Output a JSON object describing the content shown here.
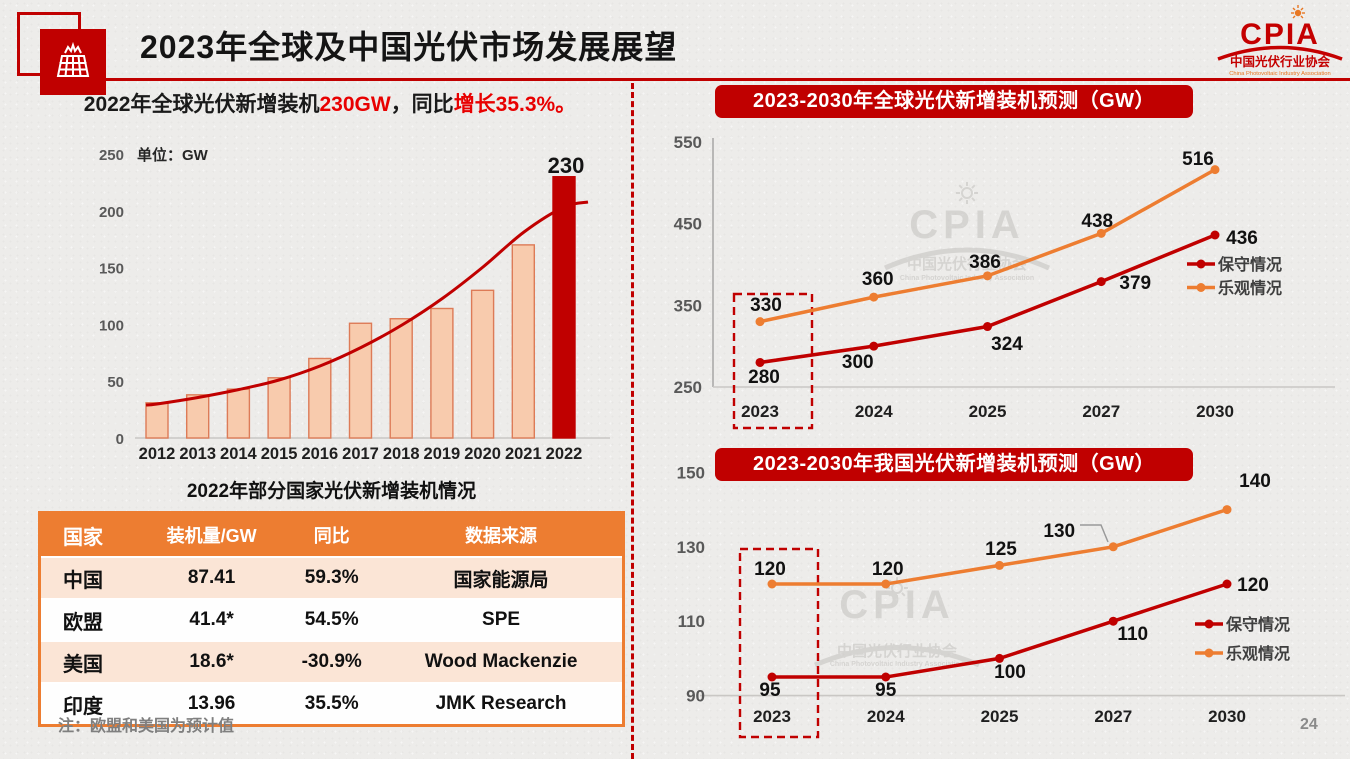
{
  "header": {
    "title": "2023年全球及中国光伏市场发展展望"
  },
  "logo": {
    "acronym": "CPIA",
    "cn": "中国光伏行业协会",
    "en": "China Photovoltaic Industry Association"
  },
  "left": {
    "headline": {
      "part1": "2022年全球光伏新增装机",
      "highlight1": "230GW",
      "part2": "，同比",
      "highlight2": "增长35.3%。"
    },
    "table_title": "2022年部分国家光伏新增装机情况",
    "table": {
      "headers": [
        "国家",
        "装机量/GW",
        "同比",
        "数据来源"
      ],
      "rows": [
        [
          "中国",
          "87.41",
          "59.3%",
          "国家能源局"
        ],
        [
          "欧盟",
          "41.4*",
          "54.5%",
          "SPE"
        ],
        [
          "美国",
          "18.6*",
          "-30.9%",
          "Wood Mackenzie"
        ],
        [
          "印度",
          "13.96",
          "35.5%",
          "JMK Research"
        ]
      ]
    },
    "note": "注：欧盟和美国为预计值"
  },
  "right": {
    "global_banner": "2023-2030年全球光伏新增装机预测（GW）",
    "china_banner": "2023-2030年我国光伏新增装机预测（GW）"
  },
  "page_number": "24",
  "colors": {
    "dark_red": "#C00000",
    "bright_red": "#E80000",
    "orange": "#ED7D31",
    "bar_fill": "#F8CBAD",
    "bar_border": "#DD7B57",
    "axis_gray": "#ABAAA8",
    "tick_gray": "#595959",
    "label_dark": "#141414",
    "legend_text": "#3f3f3f",
    "watermark_gray": "#c3c1be"
  },
  "chart_data": [
    {
      "type": "bar",
      "unit_label": "单位：GW",
      "categories": [
        "2012",
        "2013",
        "2014",
        "2015",
        "2016",
        "2017",
        "2018",
        "2019",
        "2020",
        "2021",
        "2022"
      ],
      "values": [
        31,
        38,
        43,
        53,
        70,
        101,
        105,
        114,
        130,
        170,
        230
      ],
      "highlight_index": 10,
      "annotation": "230",
      "ylim": [
        0,
        250
      ],
      "yticks": [
        0,
        50,
        100,
        150,
        200,
        250
      ],
      "trend_line": true,
      "grid": false
    },
    {
      "type": "line",
      "title": "2023-2030年全球光伏新增装机预测（GW）",
      "x": [
        "2023",
        "2024",
        "2025",
        "2027",
        "2030"
      ],
      "ylim": [
        250,
        550
      ],
      "yticks": [
        250,
        350,
        450,
        550
      ],
      "legend_position": "right",
      "highlight_x": "2023",
      "series": [
        {
          "name": "保守情况",
          "color": "#C00000",
          "values": [
            280,
            300,
            324,
            379,
            436
          ]
        },
        {
          "name": "乐观情况",
          "color": "#ED7D31",
          "values": [
            330,
            360,
            386,
            438,
            516
          ]
        }
      ]
    },
    {
      "type": "line",
      "title": "2023-2030年我国光伏新增装机预测（GW）",
      "x": [
        "2023",
        "2024",
        "2025",
        "2027",
        "2030"
      ],
      "ylim": [
        90,
        150
      ],
      "yticks": [
        90,
        110,
        130,
        150
      ],
      "legend_position": "right",
      "highlight_x": "2023",
      "series": [
        {
          "name": "保守情况",
          "color": "#C00000",
          "values": [
            95,
            95,
            100,
            110,
            120
          ]
        },
        {
          "name": "乐观情况",
          "color": "#ED7D31",
          "values": [
            120,
            120,
            125,
            130,
            140
          ]
        }
      ]
    }
  ]
}
